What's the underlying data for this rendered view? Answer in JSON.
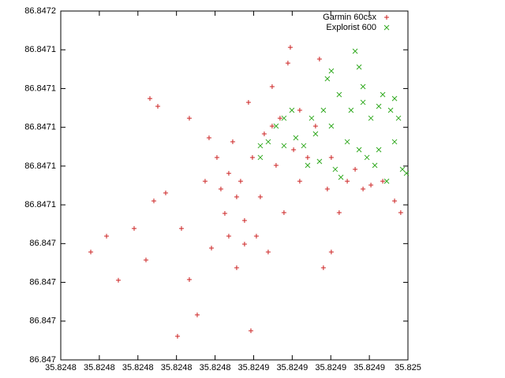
{
  "chart_data": {
    "type": "scatter",
    "legend": "top right",
    "xlim": [
      35.824755,
      35.8249575
    ],
    "ylim": [
      86.846955,
      86.8471575
    ],
    "xticks": [
      {
        "value": 35.824755,
        "label": "35.8248"
      },
      {
        "value": 35.8247775,
        "label": "35.8248"
      },
      {
        "value": 35.8248,
        "label": "35.8248"
      },
      {
        "value": 35.8248225,
        "label": "35.8248"
      },
      {
        "value": 35.824845,
        "label": "35.8248"
      },
      {
        "value": 35.8248675,
        "label": "35.8249"
      },
      {
        "value": 35.82489,
        "label": "35.8249"
      },
      {
        "value": 35.8249125,
        "label": "35.8249"
      },
      {
        "value": 35.824935,
        "label": "35.8249"
      },
      {
        "value": 35.8249575,
        "label": "35.825"
      }
    ],
    "yticks": [
      {
        "value": 86.846955,
        "label": "86.847"
      },
      {
        "value": 86.8469775,
        "label": "86.847"
      },
      {
        "value": 86.847,
        "label": "86.847"
      },
      {
        "value": 86.8470225,
        "label": "86.847"
      },
      {
        "value": 86.847045,
        "label": "86.8471"
      },
      {
        "value": 86.8470675,
        "label": "86.8471"
      },
      {
        "value": 86.84709,
        "label": "86.8471"
      },
      {
        "value": 86.8471125,
        "label": "86.8471"
      },
      {
        "value": 86.847135,
        "label": "86.8471"
      },
      {
        "value": 86.8471575,
        "label": "86.8472"
      }
    ],
    "series": [
      {
        "name": "Garmin 60csx",
        "color": "#cc2222",
        "marker": "plus",
        "x": [
          35.8247725,
          35.8247817,
          35.8247886,
          35.8247978,
          35.8248047,
          35.8248093,
          35.8248162,
          35.8248231,
          35.8248254,
          35.82483,
          35.8248346,
          35.8248392,
          35.8248429,
          35.8248461,
          35.8248507,
          35.824853,
          35.8248553,
          35.8248576,
          35.8248599,
          35.8248622,
          35.8248645,
          35.8248659,
          35.8248668,
          35.8248691,
          35.8248714,
          35.8248737,
          35.824876,
          35.8248783,
          35.8248806,
          35.8248829,
          35.8248852,
          35.8248875,
          35.8248889,
          35.8248908,
          35.8248944,
          35.824899,
          35.8249036,
          35.8249059,
          35.8249082,
          35.8249105,
          35.8249128,
          35.8249174,
          35.8249221,
          35.8249267,
          35.8249313,
          35.8249359,
          35.8249428,
          35.8249497,
          35.8249533,
          35.824807,
          35.8248116,
          35.82483,
          35.8248415,
          35.8248783,
          35.8248944,
          35.8249128,
          35.8248576,
          35.824853,
          35.8248622,
          35.8248484
        ],
        "values": [
          86.8470176,
          86.8470268,
          86.8470012,
          86.8470313,
          86.847013,
          86.8470473,
          86.8470519,
          86.8469687,
          86.8470313,
          86.8470016,
          86.8469811,
          86.8470587,
          86.8470199,
          86.8470725,
          86.84704,
          86.8470268,
          86.8470816,
          86.8470085,
          86.8470587,
          86.8470359,
          86.8471045,
          86.8469719,
          86.8470725,
          86.8470268,
          86.8470496,
          86.8470862,
          86.8470176,
          86.8471136,
          86.8470679,
          86.8470953,
          86.8470405,
          86.8471273,
          86.8471364,
          86.847077,
          86.8470587,
          86.8470725,
          86.8470907,
          86.8471296,
          86.8470085,
          86.8470542,
          86.8470176,
          86.8470405,
          86.8470587,
          86.8470656,
          86.8470542,
          86.8470565,
          86.8470587,
          86.8470473,
          86.8470405,
          86.8471067,
          86.8471022,
          86.8470953,
          86.8470839,
          86.8470907,
          86.8470999,
          86.8470725,
          86.8470496,
          86.8470633,
          86.8470222,
          86.8470542
        ]
      },
      {
        "name": "Explorist 600",
        "color": "#33aa22",
        "marker": "cross",
        "x": [
          35.8248714,
          35.824876,
          35.8248806,
          35.8248852,
          35.8248898,
          35.8248921,
          35.8248967,
          35.8249013,
          35.8249036,
          35.8249059,
          35.8249082,
          35.8249105,
          35.8249128,
          35.8249151,
          35.8249174,
          35.8249184,
          35.8249221,
          35.8249243,
          35.8249267,
          35.824929,
          35.8249313,
          35.8249336,
          35.8249359,
          35.8249382,
          35.8249405,
          35.8249428,
          35.8249451,
          35.8249474,
          35.8249497,
          35.824952,
          35.8249543,
          35.8249566,
          35.8248714,
          35.8248852,
          35.824899,
          35.8249128,
          35.824929,
          35.8249313,
          35.8249497,
          35.8249405
        ],
        "values": [
          86.8470725,
          86.8470816,
          86.8470907,
          86.8470953,
          86.8470999,
          86.8470839,
          86.8470793,
          86.8470953,
          86.8470862,
          86.8470702,
          86.8470999,
          86.8471182,
          86.8470907,
          86.8470656,
          86.847109,
          86.847061,
          86.8470816,
          86.8470999,
          86.8471342,
          86.847077,
          86.8471136,
          86.8470725,
          86.8470953,
          86.8470679,
          86.8471022,
          86.847109,
          86.8470587,
          86.8470999,
          86.8470816,
          86.8470953,
          86.8470656,
          86.8470633,
          86.8470793,
          86.8470793,
          86.8470679,
          86.8471227,
          86.847125,
          86.8471045,
          86.8471067,
          86.847077
        ]
      }
    ]
  }
}
